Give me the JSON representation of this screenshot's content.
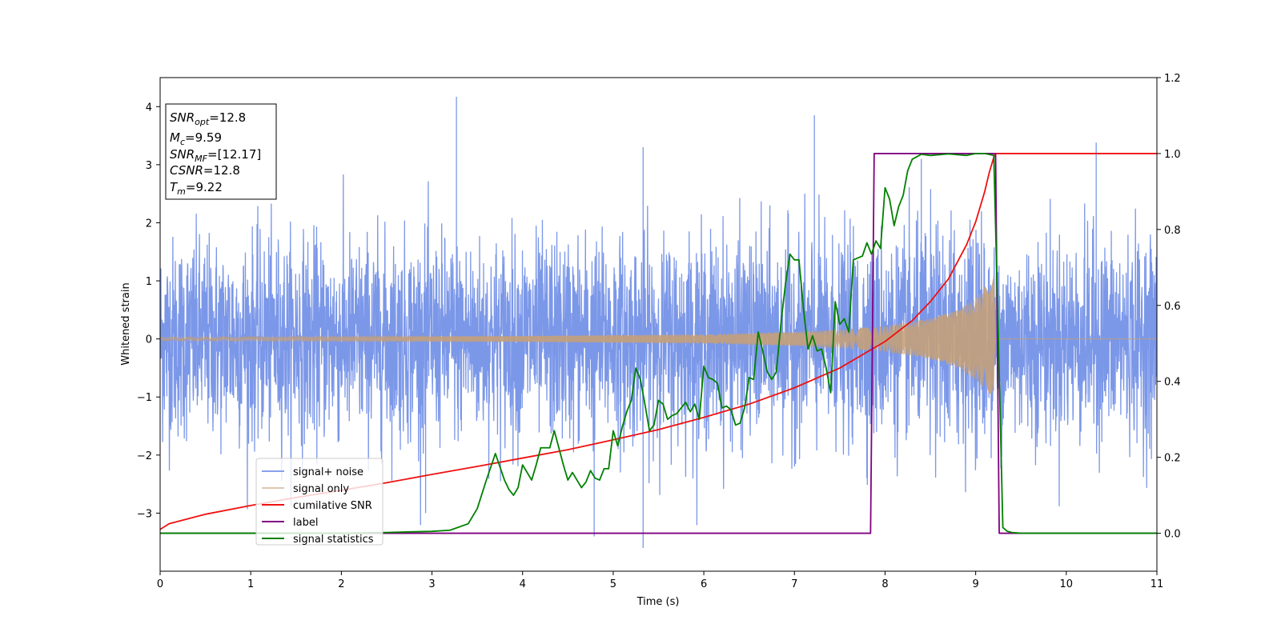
{
  "chart_data": {
    "type": "line",
    "xlabel": "Time (s)",
    "ylabel": "Whitened strain",
    "xlim": [
      0,
      11
    ],
    "ylim": [
      -4.0,
      4.5
    ],
    "ylim_right": [
      -0.1,
      1.2
    ],
    "x_ticks": [
      0,
      1,
      2,
      3,
      4,
      5,
      6,
      7,
      8,
      9,
      10,
      11
    ],
    "y_ticks": [
      -3,
      -2,
      -1,
      0,
      1,
      2,
      3,
      4
    ],
    "y_ticks_right": [
      0.0,
      0.2,
      0.4,
      0.6,
      0.8,
      1.0,
      1.2
    ],
    "grid": false,
    "legend_position": "lower-left",
    "annotation": {
      "lines": [
        {
          "base": "SNR",
          "sub": "opt",
          "rest": "=12.8"
        },
        {
          "base": "M",
          "sub": "c",
          "rest": "=9.59"
        },
        {
          "base": "SNR",
          "sub": "MF",
          "rest": "=[12.17]"
        },
        {
          "base": "CSNR",
          "sub": "",
          "rest": "=12.8"
        },
        {
          "base": "T",
          "sub": "m",
          "rest": "=9.22"
        }
      ]
    },
    "colors": {
      "signal_noise": "#7b97e8",
      "signal_only": "#c4a07a",
      "cumulative_snr": "#ee1111",
      "label": "#800080",
      "signal_statistics": "#008000"
    },
    "series": [
      {
        "name": "signal+ noise",
        "axis": "left",
        "description_values": {
          "noise_sigma": 0.85,
          "notable_spikes": [
            [
              3.27,
              4.17
            ],
            [
              7.22,
              3.85
            ],
            [
              10.33,
              3.38
            ],
            [
              5.33,
              3.3
            ],
            [
              5.33,
              -3.6
            ],
            [
              4.79,
              -3.4
            ],
            [
              8.4,
              3.1
            ],
            [
              2.93,
              -3.0
            ]
          ]
        }
      },
      {
        "name": "signal only",
        "axis": "left",
        "description_values": {
          "merger_time": 9.22,
          "envelope": [
            [
              0,
              0.03
            ],
            [
              2,
              0.04
            ],
            [
              4,
              0.05
            ],
            [
              6,
              0.08
            ],
            [
              7,
              0.12
            ],
            [
              7.5,
              0.16
            ],
            [
              8,
              0.22
            ],
            [
              8.5,
              0.35
            ],
            [
              8.8,
              0.5
            ],
            [
              9.0,
              0.7
            ],
            [
              9.1,
              0.9
            ],
            [
              9.2,
              1.1
            ],
            [
              9.22,
              0.0
            ],
            [
              11,
              0.0
            ]
          ]
        }
      },
      {
        "name": "cumilative SNR",
        "axis": "right",
        "x": [
          0,
          0.1,
          0.5,
          1,
          1.5,
          2,
          2.5,
          3,
          3.5,
          4,
          4.5,
          5,
          5.5,
          6,
          6.5,
          7,
          7.5,
          8,
          8.3,
          8.5,
          8.7,
          8.9,
          9.0,
          9.1,
          9.15,
          9.2,
          9.22,
          9.5,
          10,
          11
        ],
        "y": [
          0.01,
          0.025,
          0.05,
          0.073,
          0.094,
          0.113,
          0.133,
          0.155,
          0.176,
          0.198,
          0.22,
          0.246,
          0.273,
          0.305,
          0.34,
          0.383,
          0.435,
          0.505,
          0.56,
          0.61,
          0.67,
          0.76,
          0.82,
          0.9,
          0.95,
          0.99,
          1.0,
          1.0,
          1.0,
          1.0
        ]
      },
      {
        "name": "label",
        "axis": "right",
        "x": [
          0,
          7.84,
          7.88,
          9.22,
          9.26,
          11
        ],
        "y": [
          0,
          0,
          1,
          1,
          0,
          0
        ]
      },
      {
        "name": "signal statistics",
        "axis": "right",
        "x": [
          0,
          1,
          2,
          2.5,
          3,
          3.2,
          3.4,
          3.5,
          3.6,
          3.7,
          3.75,
          3.8,
          3.85,
          3.9,
          3.95,
          4.0,
          4.05,
          4.1,
          4.15,
          4.2,
          4.3,
          4.35,
          4.4,
          4.45,
          4.5,
          4.55,
          4.6,
          4.65,
          4.7,
          4.75,
          4.8,
          4.85,
          4.9,
          4.95,
          5.0,
          5.05,
          5.1,
          5.15,
          5.2,
          5.25,
          5.3,
          5.35,
          5.4,
          5.45,
          5.5,
          5.55,
          5.6,
          5.65,
          5.7,
          5.75,
          5.8,
          5.85,
          5.9,
          5.95,
          6.0,
          6.05,
          6.1,
          6.15,
          6.2,
          6.25,
          6.3,
          6.35,
          6.4,
          6.45,
          6.5,
          6.55,
          6.6,
          6.65,
          6.7,
          6.75,
          6.8,
          6.85,
          6.9,
          6.95,
          7.0,
          7.05,
          7.1,
          7.15,
          7.2,
          7.25,
          7.3,
          7.35,
          7.4,
          7.45,
          7.5,
          7.55,
          7.6,
          7.65,
          7.7,
          7.75,
          7.8,
          7.85,
          7.9,
          7.95,
          8.0,
          8.05,
          8.1,
          8.15,
          8.2,
          8.25,
          8.3,
          8.4,
          8.5,
          8.6,
          8.7,
          8.8,
          8.9,
          9.0,
          9.1,
          9.2,
          9.25,
          9.3,
          9.35,
          9.4,
          9.5,
          10,
          11
        ],
        "y": [
          0,
          0,
          0,
          0.002,
          0.005,
          0.008,
          0.025,
          0.065,
          0.14,
          0.21,
          0.175,
          0.14,
          0.115,
          0.1,
          0.12,
          0.18,
          0.16,
          0.14,
          0.18,
          0.225,
          0.225,
          0.27,
          0.225,
          0.18,
          0.14,
          0.16,
          0.14,
          0.12,
          0.135,
          0.165,
          0.145,
          0.14,
          0.17,
          0.17,
          0.27,
          0.23,
          0.28,
          0.32,
          0.35,
          0.435,
          0.405,
          0.34,
          0.27,
          0.285,
          0.35,
          0.34,
          0.3,
          0.31,
          0.315,
          0.33,
          0.345,
          0.32,
          0.34,
          0.3,
          0.44,
          0.41,
          0.405,
          0.395,
          0.33,
          0.335,
          0.325,
          0.285,
          0.29,
          0.33,
          0.41,
          0.405,
          0.53,
          0.48,
          0.425,
          0.405,
          0.425,
          0.55,
          0.655,
          0.735,
          0.72,
          0.72,
          0.59,
          0.485,
          0.52,
          0.48,
          0.485,
          0.435,
          0.37,
          0.61,
          0.55,
          0.565,
          0.53,
          0.72,
          0.725,
          0.73,
          0.765,
          0.735,
          0.77,
          0.75,
          0.91,
          0.88,
          0.81,
          0.86,
          0.89,
          0.955,
          0.985,
          0.998,
          0.995,
          0.997,
          0.999,
          0.997,
          0.995,
          1.0,
          1.0,
          0.995,
          0.52,
          0.015,
          0.005,
          0.002,
          0.0,
          0.0,
          0.0
        ]
      }
    ]
  }
}
